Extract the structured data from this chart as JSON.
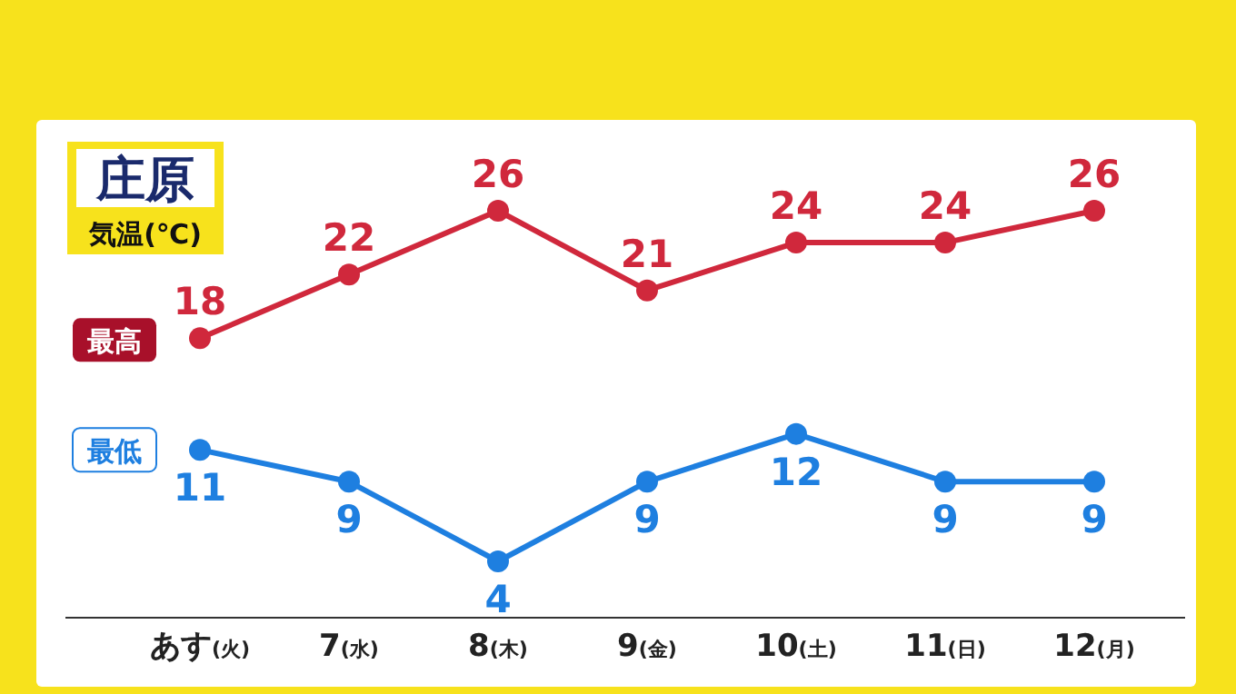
{
  "chart_data": {
    "type": "line",
    "title": "庄原",
    "subtitle": "気温(℃)",
    "categories": [
      "あす(火)",
      "7(水)",
      "8(木)",
      "9(金)",
      "10(土)",
      "11(日)",
      "12(月)"
    ],
    "series": [
      {
        "name": "最高",
        "color": "#d0283c",
        "values": [
          18,
          22,
          26,
          21,
          24,
          24,
          26
        ]
      },
      {
        "name": "最低",
        "color": "#1e7fe0",
        "values": [
          11,
          9,
          4,
          9,
          12,
          9,
          9
        ]
      }
    ],
    "data_labels": true,
    "marker": "circle",
    "grid": false,
    "legend": false
  }
}
